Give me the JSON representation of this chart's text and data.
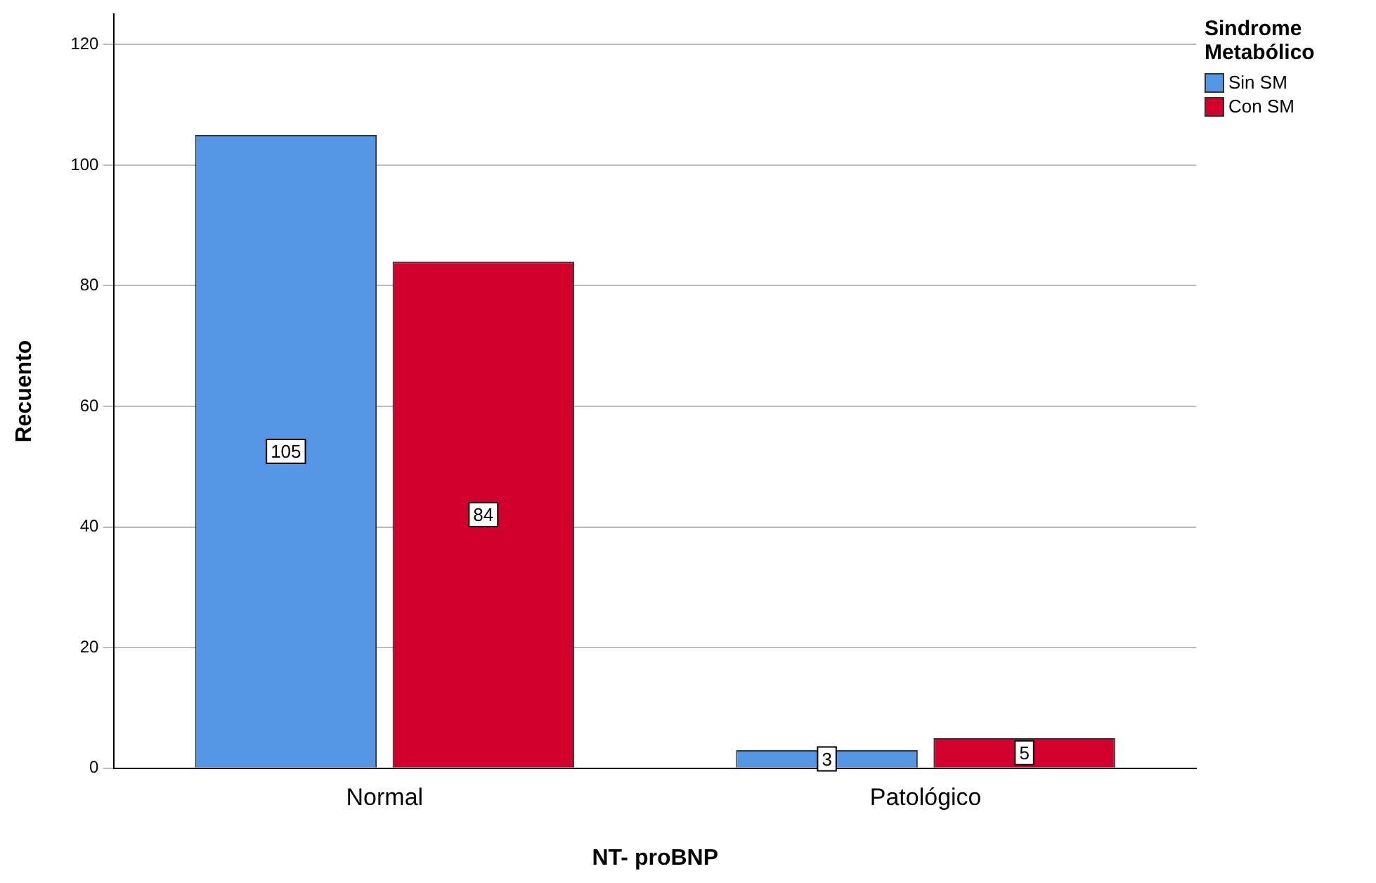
{
  "chart_data": {
    "type": "bar",
    "xlabel": "NT- proBNP",
    "ylabel": "Recuento",
    "legend_title": "Sindrome Metabólico",
    "categories": [
      "Normal",
      "Patológico"
    ],
    "series": [
      {
        "name": "Sin SM",
        "color": "#5596e6",
        "values": [
          105,
          3
        ]
      },
      {
        "name": "Con SM",
        "color": "#d2002d",
        "values": [
          84,
          5
        ]
      }
    ],
    "ylim": [
      0,
      125
    ],
    "yticks": [
      0,
      20,
      40,
      60,
      80,
      100,
      120
    ],
    "grid": "y",
    "legend": "top right",
    "data_labels": true
  }
}
